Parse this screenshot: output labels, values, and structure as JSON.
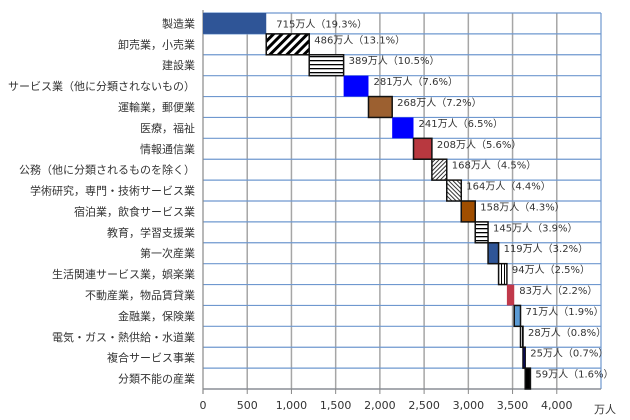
{
  "chart_data": {
    "type": "bar",
    "subtype": "waterfall-horizontal",
    "categories": [
      "製造業",
      "卸売業，小売業",
      "建設業",
      "サービス業（他に分類されないもの）",
      "運輸業，郵便業",
      "医療，福祉",
      "情報通信業",
      "公務（他に分類されるものを除く）",
      "学術研究，専門・技術サービス業",
      "宿泊業，飲食サービス業",
      "教育，学習支援業",
      "第一次産業",
      "生活関連サービス業，娯楽業",
      "不動産業，物品賃貸業",
      "金融業，保険業",
      "電気・ガス・熱供給・水道業",
      "複合サービス事業",
      "分類不能の産業"
    ],
    "values": [
      715,
      486,
      389,
      281,
      268,
      241,
      208,
      168,
      164,
      158,
      145,
      119,
      94,
      83,
      71,
      28,
      25,
      59
    ],
    "data_labels": [
      "715万人（19.3%）",
      "486万人（13.1%）",
      "389万人（10.5%）",
      "281万人（7.6%）",
      "268万人（7.2%）",
      "241万人（6.5%）",
      "208万人（5.6%）",
      "168万人（4.5%）",
      "164万人（4.4%）",
      "158万人（4.3%）",
      "145万人（3.9%）",
      "119万人（3.2%）",
      "94万人（2.5%）",
      "83万人（2.2%）",
      "71万人（1.9%）",
      "28万人（0.8%）",
      "25万人（0.7%）",
      "59万人（1.6%）"
    ],
    "fills": [
      "#2F5597",
      "hatch-diagonal",
      "hatch-horizontal",
      "#0000FF",
      "#9C6030",
      "#0000FF",
      "#B8383F",
      "hatch-fine-back",
      "hatch-fine-fwd",
      "#A04E00",
      "hatch-horizontal",
      "#2F5597",
      "hatch-vertical",
      "#C0394B",
      "#5B9BD5",
      "hatch-vertical",
      "#0000A0",
      "#000000"
    ],
    "xlim": [
      0,
      4500
    ],
    "xticks": [
      "0",
      "500",
      "1,000",
      "1,500",
      "2,000",
      "2,500",
      "3,000",
      "3,500",
      "4,000"
    ],
    "xunit": "万人",
    "grid": true
  }
}
